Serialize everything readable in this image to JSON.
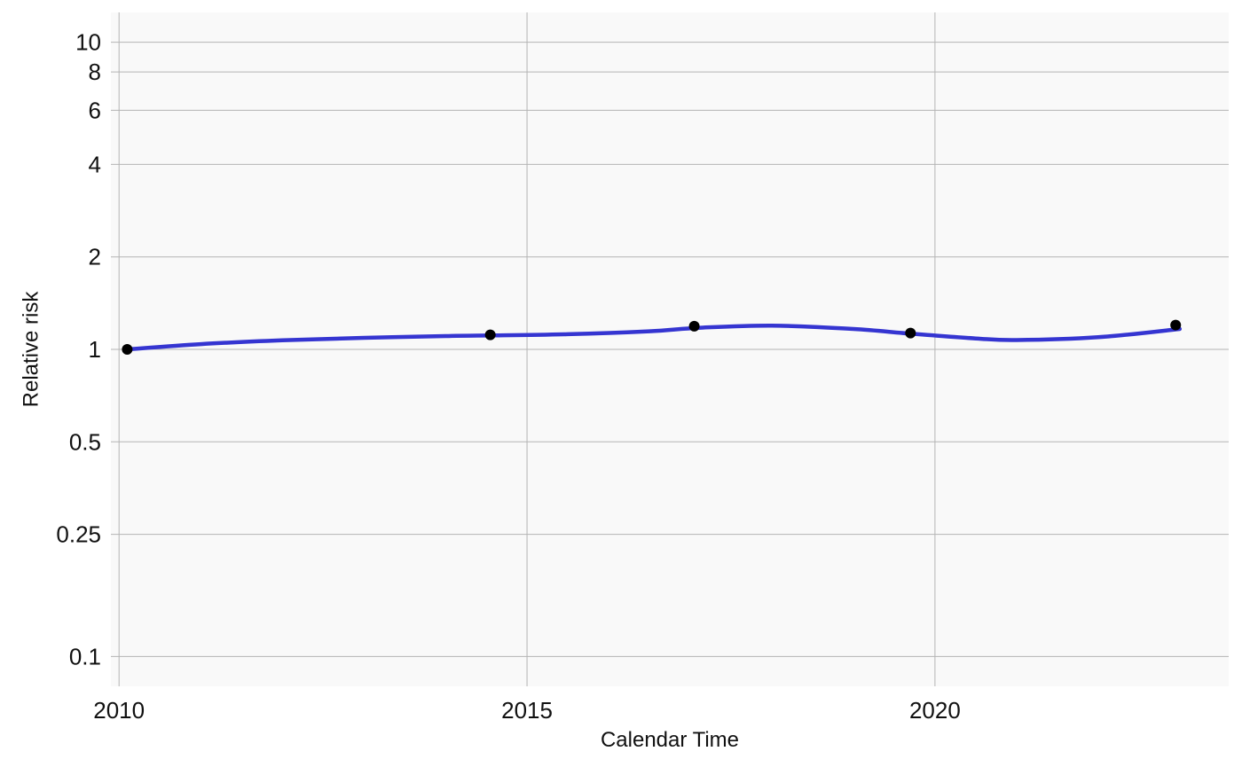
{
  "chart_data": {
    "type": "line",
    "title": "",
    "xlabel": "Calendar Time",
    "ylabel": "Relative risk",
    "y_scale": "log",
    "grid": true,
    "legend": "none",
    "xlim": [
      2009.9,
      2023.6
    ],
    "ylim": [
      0.08,
      12.5
    ],
    "x_ticks": [
      2010,
      2015,
      2020
    ],
    "x_tick_labels": [
      "2010",
      "2015",
      "2020"
    ],
    "y_ticks": [
      0.1,
      0.25,
      0.5,
      1,
      2,
      4,
      6,
      8,
      10
    ],
    "y_tick_labels": [
      "0.1",
      "0.25",
      "0.5",
      "1",
      "2",
      "4",
      "6",
      "8",
      "10"
    ],
    "series": [
      {
        "kind": "curve",
        "x": [
          2010.1,
          2011,
          2012,
          2013,
          2014,
          2014.6,
          2015.5,
          2016.5,
          2017.1,
          2018,
          2019,
          2019.7,
          2020.5,
          2021,
          2022,
          2023
        ],
        "y": [
          1.0,
          1.04,
          1.07,
          1.09,
          1.105,
          1.11,
          1.12,
          1.145,
          1.175,
          1.195,
          1.165,
          1.125,
          1.085,
          1.072,
          1.095,
          1.165
        ]
      },
      {
        "kind": "points",
        "x": [
          2010.1,
          2014.55,
          2017.05,
          2019.7,
          2022.95
        ],
        "y": [
          1.0,
          1.115,
          1.19,
          1.13,
          1.2
        ]
      }
    ]
  },
  "colors": {
    "panel": "#f9f9f9",
    "grid": "#b4b4b4",
    "curve": "#3535d1",
    "points": "#000000"
  }
}
